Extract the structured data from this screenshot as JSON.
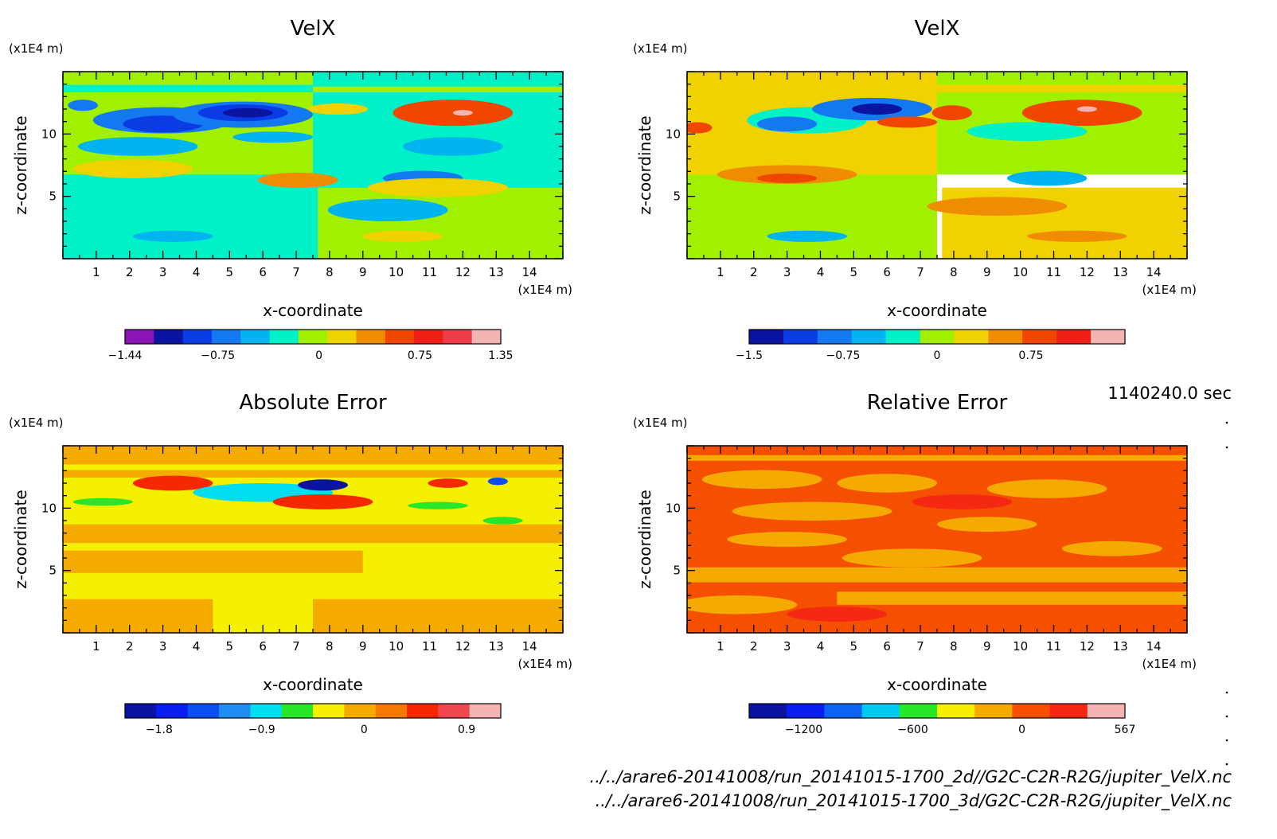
{
  "time": "1140240.0 sec",
  "files": [
    "../../arare6-20141008/run_20141015-1700_2d//G2C-C2R-R2G/jupiter_VelX.nc",
    "../../arare6-20141008/run_20141015-1700_3d/G2C-C2R-R2G/jupiter_VelX.nc"
  ],
  "chart_data": [
    {
      "type": "heatmap",
      "title": "VelX",
      "xlabel": "x-coordinate",
      "ylabel": "z-coordinate",
      "xunit": "(x1E4 m)",
      "yunit": "(x1E4 m)",
      "xlim": [
        0,
        15
      ],
      "ylim": [
        0,
        15
      ],
      "xticks": [
        "1",
        "2",
        "3",
        "4",
        "5",
        "6",
        "7",
        "8",
        "9",
        "10",
        "11",
        "12",
        "13",
        "14"
      ],
      "yticks": [
        "5",
        "10"
      ],
      "colorbar": {
        "range": [
          -1.44,
          1.35
        ],
        "tick_values": [
          -1.44,
          -0.75,
          0,
          0.75,
          1.35
        ],
        "tick_labels": [
          "-1.44",
          "-0.75",
          "0",
          "0.75",
          "1.35"
        ],
        "colors": [
          "#8a14b4",
          "#0a14a0",
          "#0a3ce6",
          "#1478f0",
          "#00b4f0",
          "#00f0c8",
          "#a0f000",
          "#f0d200",
          "#f08c00",
          "#f04600",
          "#f01e14",
          "#f03c46",
          "#f5b4b4"
        ]
      }
    },
    {
      "type": "heatmap",
      "title": "VelX",
      "xlabel": "x-coordinate",
      "ylabel": "z-coordinate",
      "xunit": "(x1E4 m)",
      "yunit": "(x1E4 m)",
      "xlim": [
        0,
        15
      ],
      "ylim": [
        0,
        15
      ],
      "xticks": [
        "1",
        "2",
        "3",
        "4",
        "5",
        "6",
        "7",
        "8",
        "9",
        "10",
        "11",
        "12",
        "13",
        "14"
      ],
      "yticks": [
        "5",
        "10"
      ],
      "colorbar": {
        "range": [
          -1.5,
          1.5
        ],
        "tick_values": [
          -1.5,
          -0.75,
          0,
          0.75
        ],
        "tick_labels": [
          "-1.5",
          "-0.75",
          "0",
          "0.75"
        ],
        "colors": [
          "#0a14a0",
          "#0a3ce6",
          "#1478f0",
          "#00b4f0",
          "#00f0c8",
          "#a0f000",
          "#f0d200",
          "#f08c00",
          "#f04600",
          "#f01e14",
          "#f5b4b4"
        ]
      }
    },
    {
      "type": "heatmap",
      "title": "Absolute Error",
      "xlabel": "x-coordinate",
      "ylabel": "z-coordinate",
      "xunit": "(x1E4 m)",
      "yunit": "(x1E4 m)",
      "xlim": [
        0,
        15
      ],
      "ylim": [
        0,
        15
      ],
      "xticks": [
        "1",
        "2",
        "3",
        "4",
        "5",
        "6",
        "7",
        "8",
        "9",
        "10",
        "11",
        "12",
        "13",
        "14"
      ],
      "yticks": [
        "5",
        "10"
      ],
      "colorbar": {
        "range": [
          -2.1,
          1.2
        ],
        "tick_values": [
          -1.8,
          -0.9,
          0,
          0.9
        ],
        "tick_labels": [
          "-1.8",
          "-0.9",
          "0",
          "0.9"
        ],
        "colors": [
          "#0a14a0",
          "#0a1ef0",
          "#0a50f0",
          "#1e8cf0",
          "#00dcf0",
          "#28e628",
          "#f5f000",
          "#f5aa00",
          "#f57800",
          "#f52800",
          "#f04650",
          "#f5b4b4"
        ]
      }
    },
    {
      "type": "heatmap",
      "title": "Relative Error",
      "xlabel": "x-coordinate",
      "ylabel": "z-coordinate",
      "xunit": "(x1E4 m)",
      "yunit": "(x1E4 m)",
      "xlim": [
        0,
        15
      ],
      "ylim": [
        0,
        15
      ],
      "xticks": [
        "1",
        "2",
        "3",
        "4",
        "5",
        "6",
        "7",
        "8",
        "9",
        "10",
        "11",
        "12",
        "13",
        "14"
      ],
      "yticks": [
        "5",
        "10"
      ],
      "colorbar": {
        "range": [
          -1500,
          567
        ],
        "tick_values": [
          -1200,
          -600,
          0,
          567
        ],
        "tick_labels": [
          "-1200",
          "-600",
          "0",
          "567"
        ],
        "colors": [
          "#0a14a0",
          "#0a1ef0",
          "#0a64f0",
          "#00c8f0",
          "#28e628",
          "#f5f000",
          "#f5aa00",
          "#f55000",
          "#f52814",
          "#f5b4b4"
        ]
      }
    }
  ]
}
